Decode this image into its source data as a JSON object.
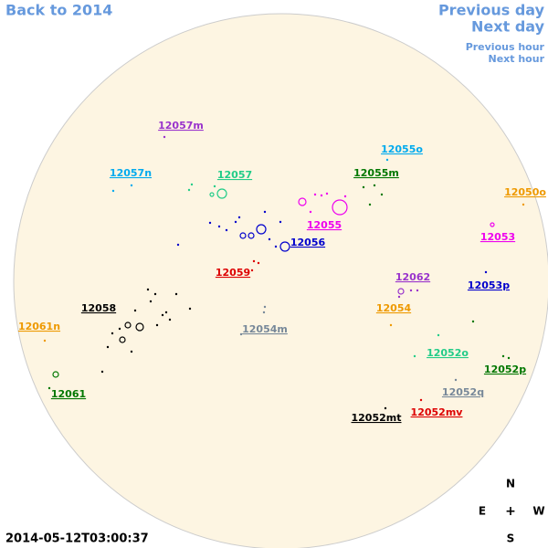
{
  "nav": {
    "back": "Back to 2014",
    "previous_day": "Previous day",
    "next_day": "Next day",
    "previous_hour": "Previous hour",
    "next_hour": "Next hour"
  },
  "timestamp": "2014-05-12T03:00:37",
  "compass": {
    "north": "N",
    "east": "E",
    "center": "+",
    "west": "W",
    "south": "S"
  },
  "groups": [
    {
      "label": "12057m",
      "color": "#9933cc"
    },
    {
      "label": "12057n",
      "color": "#00aaee"
    },
    {
      "label": "12057",
      "color": "#22cc88"
    },
    {
      "label": "12055o",
      "color": "#00aaee"
    },
    {
      "label": "12055m",
      "color": "#007700"
    },
    {
      "label": "12050o",
      "color": "#ee9900"
    },
    {
      "label": "12055",
      "color": "#ee00ee"
    },
    {
      "label": "12053",
      "color": "#ee00ee"
    },
    {
      "label": "12056",
      "color": "#0000cc"
    },
    {
      "label": "12059",
      "color": "#dd0000"
    },
    {
      "label": "12062",
      "color": "#9933cc"
    },
    {
      "label": "12053p",
      "color": "#0000cc"
    },
    {
      "label": "12058",
      "color": "#000000"
    },
    {
      "label": "12054",
      "color": "#ee9900"
    },
    {
      "label": "12054m",
      "color": "#778899"
    },
    {
      "label": "12061n",
      "color": "#ee9900"
    },
    {
      "label": "12052o",
      "color": "#22cc88"
    },
    {
      "label": "12052p",
      "color": "#007700"
    },
    {
      "label": "12061",
      "color": "#007700"
    },
    {
      "label": "12052q",
      "color": "#778899"
    },
    {
      "label": "12052mv",
      "color": "#dd0000"
    },
    {
      "label": "12052mt",
      "color": "#000000"
    }
  ]
}
